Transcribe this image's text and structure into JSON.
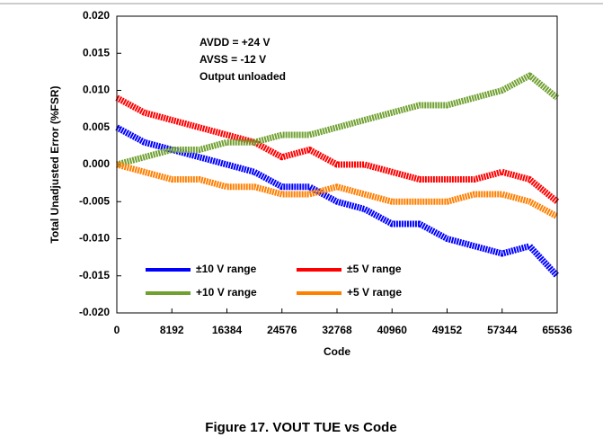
{
  "chart_data": {
    "type": "line",
    "caption": "Figure 17. VOUT TUE vs Code",
    "xlabel": "Code",
    "ylabel": "Total Unadjusted Error (%FSR)",
    "annotations": [
      "AVDD = +24 V",
      "AVSS = -12 V",
      "Output unloaded"
    ],
    "x": [
      0,
      4096,
      8192,
      12288,
      16384,
      20480,
      24576,
      28672,
      32768,
      36864,
      40960,
      45056,
      49152,
      53248,
      57344,
      61440,
      65536
    ],
    "series": [
      {
        "name": "±10 V range",
        "color": "#0000ff",
        "values": [
          0.005,
          0.003,
          0.002,
          0.001,
          0.0,
          -0.001,
          -0.003,
          -0.003,
          -0.005,
          -0.006,
          -0.008,
          -0.008,
          -0.01,
          -0.011,
          -0.012,
          -0.011,
          -0.015
        ]
      },
      {
        "name": "±5 V range",
        "color": "#ff0000",
        "values": [
          0.009,
          0.007,
          0.006,
          0.005,
          0.004,
          0.003,
          0.001,
          0.002,
          0.0,
          0.0,
          -0.001,
          -0.002,
          -0.002,
          -0.002,
          -0.001,
          -0.002,
          -0.005
        ]
      },
      {
        "name": "+10 V range",
        "color": "#70a030",
        "values": [
          0.0,
          0.001,
          0.002,
          0.002,
          0.003,
          0.003,
          0.004,
          0.004,
          0.005,
          0.006,
          0.007,
          0.008,
          0.008,
          0.009,
          0.01,
          0.012,
          0.009
        ]
      },
      {
        "name": "+5 V range",
        "color": "#ff7f00",
        "values": [
          0.0,
          -0.001,
          -0.002,
          -0.002,
          -0.003,
          -0.003,
          -0.004,
          -0.004,
          -0.003,
          -0.004,
          -0.005,
          -0.005,
          -0.005,
          -0.004,
          -0.004,
          -0.005,
          -0.007
        ]
      }
    ],
    "xlim": [
      0,
      65536
    ],
    "xticks": [
      0,
      8192,
      16384,
      24576,
      32768,
      40960,
      49152,
      57344,
      65536
    ],
    "ylim": [
      -0.02,
      0.02
    ],
    "yticks": [
      {
        "value": -0.02,
        "label": "-0.020"
      },
      {
        "value": -0.015,
        "label": "-0.015"
      },
      {
        "value": -0.01,
        "label": "-0.010"
      },
      {
        "value": -0.005,
        "label": "-0.005"
      },
      {
        "value": 0,
        "label": "0.000"
      },
      {
        "value": 0.005,
        "label": "0.005"
      },
      {
        "value": 0.01,
        "label": "0.010"
      },
      {
        "value": 0.015,
        "label": "0.015"
      },
      {
        "value": 0.02,
        "label": "0.020"
      }
    ],
    "grid": false,
    "legend": "lower left"
  }
}
